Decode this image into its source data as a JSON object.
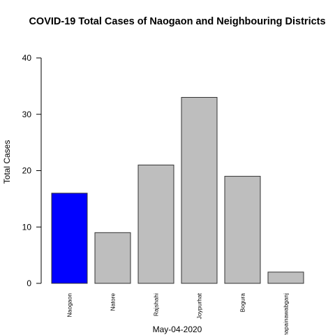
{
  "chart_data": {
    "type": "bar",
    "title": "COVID-19 Total Cases of Naogaon and Neighbouring Districts",
    "xlabel": "May-04-2020",
    "ylabel": "Total Cases",
    "categories": [
      "Naogaon",
      "Natore",
      "Rajshahi",
      "Joypurhat",
      "Bogura",
      "Chapainawabganj"
    ],
    "values": [
      16,
      9,
      21,
      33,
      19,
      2
    ],
    "colors": [
      "#0000ff",
      "#bebebe",
      "#bebebe",
      "#bebebe",
      "#bebebe",
      "#bebebe"
    ],
    "ylim": [
      0,
      40
    ],
    "yticks": [
      0,
      10,
      20,
      30,
      40
    ],
    "grid": false
  }
}
